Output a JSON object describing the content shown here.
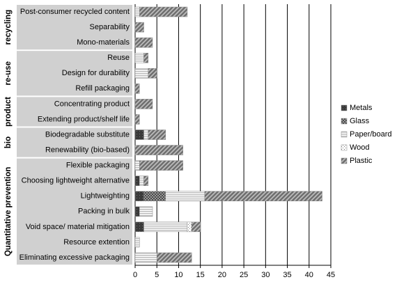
{
  "chart_data": {
    "type": "stacked-bar-horizontal",
    "groups": [
      {
        "name": "recycling",
        "categories": [
          "Post-consumer recycled content",
          "Separability",
          "Mono-materials"
        ]
      },
      {
        "name": "re-use",
        "categories": [
          "Reuse",
          "Design for durability",
          "Refill packaging"
        ]
      },
      {
        "name": "product",
        "categories": [
          "Concentrating product",
          "Extending product/shelf life"
        ]
      },
      {
        "name": "bio",
        "categories": [
          "Biodegradable substitute",
          "Renewability (bio-based)"
        ]
      },
      {
        "name": "Quantitative prevention",
        "categories": [
          "Flexible packaging",
          "Choosing lightweight alternative",
          "Lightweighting",
          "Packing in bulk",
          "Void space/ material mitigation",
          "Resource extention",
          "Eliminating excessive packaging"
        ]
      }
    ],
    "series": [
      {
        "name": "Metals",
        "color": "#3a3a3a",
        "pattern": "solid",
        "values": [
          0,
          0,
          0,
          0,
          0,
          0,
          0,
          0,
          2,
          0,
          0,
          1,
          2,
          1,
          2,
          0,
          0
        ]
      },
      {
        "name": "Glass",
        "color": "#4a4a4a",
        "pattern": "checker",
        "values": [
          0,
          0,
          0,
          0,
          0,
          0,
          0,
          0,
          0,
          0,
          0,
          0,
          5,
          0,
          0,
          0,
          0
        ]
      },
      {
        "name": "Paper/board",
        "color": "#bdbdbd",
        "pattern": "horizontal",
        "values": [
          1,
          0,
          0,
          2,
          3,
          0,
          0,
          0,
          1,
          0,
          1,
          1,
          9,
          3,
          10,
          1,
          5
        ]
      },
      {
        "name": "Wood",
        "color": "#7a7a7a",
        "pattern": "dots",
        "values": [
          0,
          0,
          0,
          0,
          0,
          0,
          0,
          0,
          0,
          0,
          0,
          0,
          0,
          0,
          1,
          0,
          0
        ]
      },
      {
        "name": "Plastic",
        "color": "#6e6e6e",
        "pattern": "diagonal",
        "values": [
          11,
          2,
          4,
          1,
          2,
          1,
          4,
          1,
          4,
          11,
          10,
          1,
          27,
          0,
          2,
          0,
          8
        ]
      }
    ],
    "xlim": [
      0,
      45
    ],
    "xticks": [
      0,
      5,
      10,
      15,
      20,
      25,
      30,
      35,
      40,
      45
    ],
    "grid": true
  }
}
